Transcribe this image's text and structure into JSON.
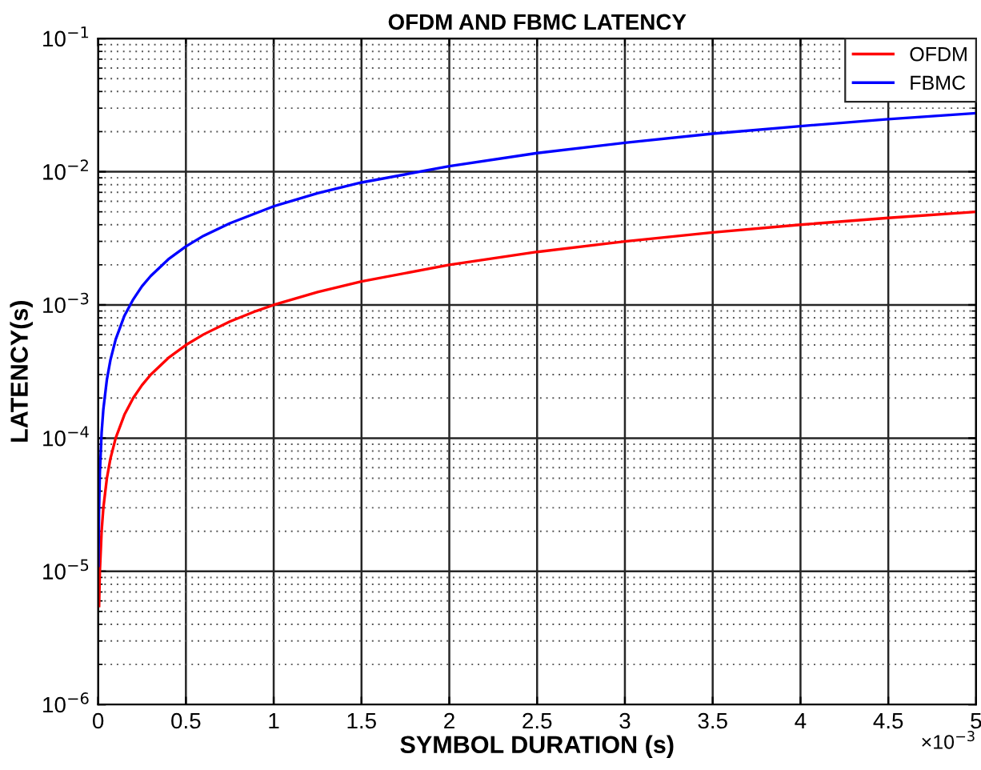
{
  "chart_data": {
    "type": "line",
    "title": "OFDM AND FBMC LATENCY",
    "xlabel": "SYMBOL DURATION (s)",
    "ylabel": "LATENCY(s)",
    "series": [
      {
        "name": "OFDM",
        "color": "#ff0000",
        "x": [
          0.0055,
          0.01,
          0.02,
          0.03,
          0.05,
          0.07,
          0.1,
          0.15,
          0.2,
          0.25,
          0.3,
          0.4,
          0.5,
          0.6,
          0.75,
          0.9,
          1,
          1.25,
          1.5,
          2,
          2.5,
          3,
          3.5,
          4,
          4.5,
          5
        ],
        "values": [
          5.5e-06,
          1e-05,
          2e-05,
          3e-05,
          5e-05,
          7e-05,
          0.0001,
          0.00015,
          0.0002,
          0.00025,
          0.0003,
          0.0004,
          0.0005,
          0.0006,
          0.00075,
          0.0009,
          0.001,
          0.00125,
          0.0015,
          0.002,
          0.0025,
          0.003,
          0.0035,
          0.004,
          0.0045,
          0.005
        ]
      },
      {
        "name": "FBMC",
        "color": "#0000ff",
        "x": [
          0.002,
          0.005,
          0.01,
          0.02,
          0.03,
          0.05,
          0.07,
          0.1,
          0.15,
          0.2,
          0.25,
          0.3,
          0.4,
          0.5,
          0.6,
          0.75,
          1,
          1.25,
          1.5,
          2,
          2.5,
          3,
          3.5,
          4,
          4.5,
          5
        ],
        "values": [
          1.1e-05,
          2.75e-05,
          5.5e-05,
          0.00011,
          0.000165,
          0.000275,
          0.000385,
          0.00055,
          0.00083,
          0.0011,
          0.00138,
          0.00165,
          0.0022,
          0.00275,
          0.0033,
          0.0041,
          0.0055,
          0.0069,
          0.0083,
          0.011,
          0.0138,
          0.0165,
          0.0193,
          0.022,
          0.0248,
          0.0275
        ]
      }
    ],
    "xlim": [
      0,
      5
    ],
    "xticks": [
      0,
      0.5,
      1,
      1.5,
      2,
      2.5,
      3,
      3.5,
      4,
      4.5,
      5
    ],
    "log": "y",
    "ylim": [
      1e-06,
      0.1
    ],
    "yticks": [
      {
        "value": 1e-06,
        "label": "10$^{−6}$"
      },
      {
        "value": 1e-05,
        "label": "10$^{−5}$"
      },
      {
        "value": 0.0001,
        "label": "10$^{−4}$"
      },
      {
        "value": 0.001,
        "label": "10$^{−3}$"
      },
      {
        "value": 0.01,
        "label": "10$^{−2}$"
      },
      {
        "value": 0.1,
        "label": "10$^{−1}$"
      }
    ],
    "grid": true,
    "legend": "top right",
    "line_style": "solid",
    "marker": "none",
    "annotations": [
      "×10$^{−3}$"
    ]
  }
}
